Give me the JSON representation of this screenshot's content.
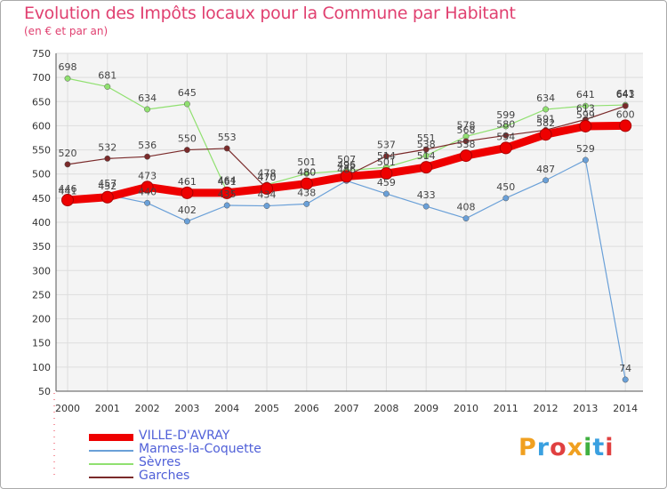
{
  "chart_data": {
    "type": "line",
    "title": "Evolution des Impôts locaux pour la Commune par Habitant",
    "subtitle": "(en € et par an)",
    "xlabel": "",
    "ylabel": "",
    "ylim": [
      50,
      750
    ],
    "yticks": [
      50,
      100,
      150,
      200,
      250,
      300,
      350,
      400,
      450,
      500,
      550,
      600,
      650,
      700,
      750
    ],
    "categories": [
      "2000",
      "2001",
      "2002",
      "2003",
      "2004",
      "2005",
      "2006",
      "2007",
      "2008",
      "2009",
      "2010",
      "2011",
      "2012",
      "2013",
      "2014"
    ],
    "grid": true,
    "legend_position": "bottom-left",
    "series": [
      {
        "name": "VILLE-D'AVRAY",
        "color": "#ee0000",
        "values": [
          446,
          452,
          473,
          461,
          461,
          470,
          480,
          495,
          501,
          514,
          538,
          554,
          582,
          599,
          600
        ]
      },
      {
        "name": "Marnes-la-Coquette",
        "color": "#6aa0d8",
        "values": [
          441,
          457,
          440,
          402,
          435,
          434,
          438,
          486,
          459,
          433,
          408,
          450,
          487,
          529,
          74
        ]
      },
      {
        "name": "Sèvres",
        "color": "#90e070",
        "values": [
          698,
          681,
          634,
          645,
          464,
          478,
          501,
          507,
          514,
          538,
          578,
          599,
          634,
          641,
          643
        ]
      },
      {
        "name": "Garches",
        "color": "#7a2a2a",
        "values": [
          520,
          532,
          536,
          550,
          553,
          470,
          480,
          496,
          537,
          551,
          568,
          580,
          591,
          613,
          641
        ]
      }
    ]
  },
  "brand": {
    "letters": [
      "P",
      "r",
      "o",
      "x",
      "i",
      "t",
      "i"
    ],
    "colors": [
      "#f0a020",
      "#3aa0e0",
      "#e04040",
      "#f0a020",
      "#40b040",
      "#3aa0e0",
      "#e04040"
    ]
  }
}
